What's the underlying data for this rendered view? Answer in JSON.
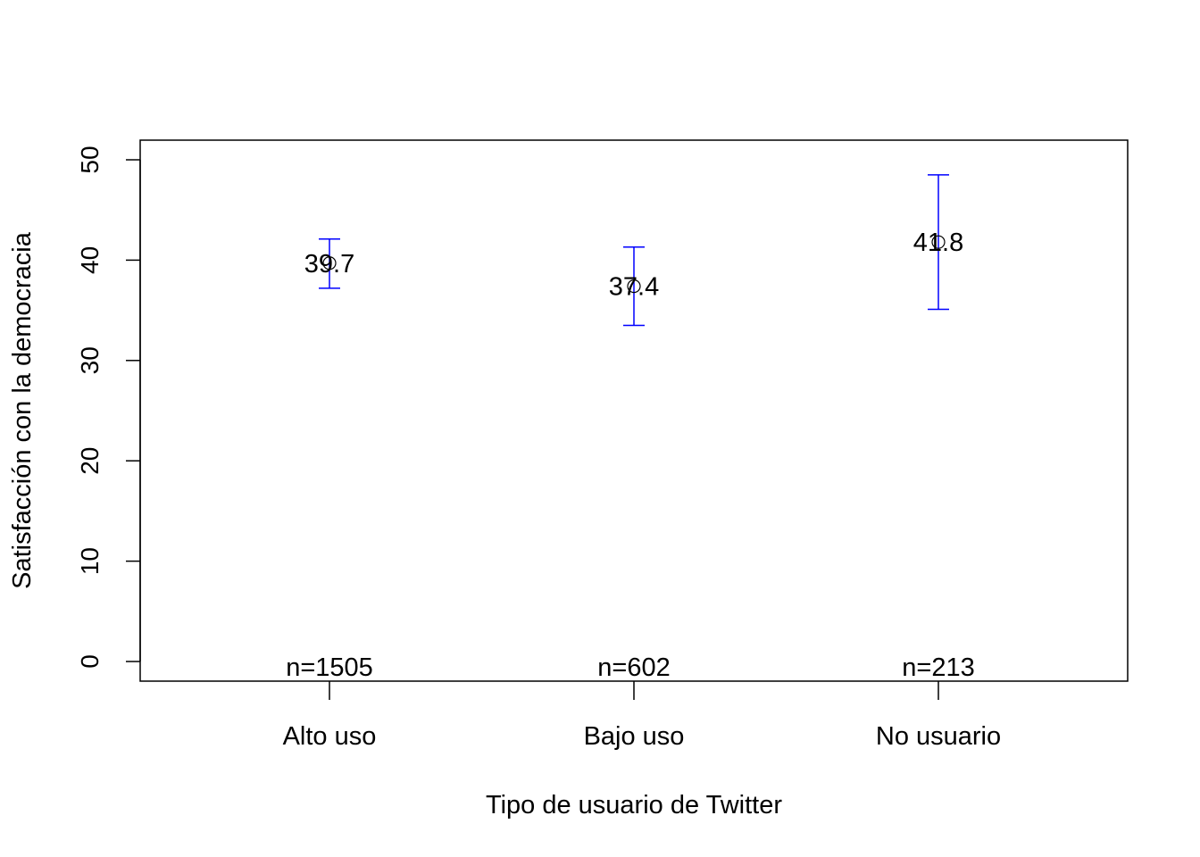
{
  "chart_data": {
    "type": "errorbar",
    "title": "",
    "xlabel": "Tipo de usuario de Twitter",
    "ylabel": "Satisfacción con la democracia",
    "ylim": [
      -2,
      52
    ],
    "yticks": [
      "0",
      "10",
      "20",
      "30",
      "40",
      "50"
    ],
    "categories": [
      "Alto uso",
      "Bajo uso",
      "No usuario"
    ],
    "means": [
      39.7,
      37.4,
      41.8
    ],
    "lower": [
      37.2,
      33.5,
      35.1
    ],
    "upper": [
      42.1,
      41.3,
      48.5
    ],
    "value_labels": [
      "39.7",
      "37.4",
      "41.8"
    ],
    "n_labels": [
      "n=1505",
      "n=602",
      "n=213"
    ],
    "grid": false,
    "errorbar_color": "#0000ff",
    "point_color": "#000000"
  }
}
